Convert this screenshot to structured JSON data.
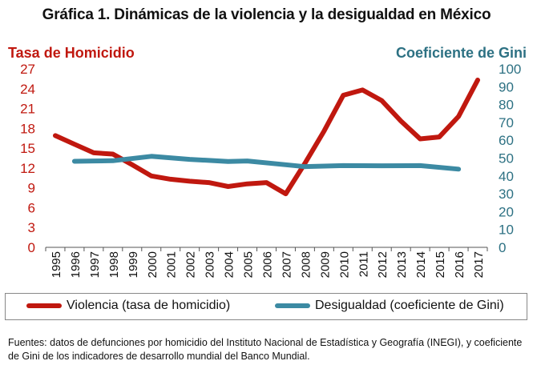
{
  "title": "Gráfica 1.  Dinámicas de la violencia y la desigualdad en México",
  "left_axis_title": "Tasa de Homicidio",
  "right_axis_title": "Coeficiente de Gini",
  "legend": {
    "violence": "Violencia (tasa de homicidio)",
    "inequality": "Desigualdad (coeficiente de Gini)"
  },
  "source": "Fuentes: datos de defunciones por homicidio del Instituto Nacional de Estadística y Geografía (INEGI), y coeficiente de Gini de los indicadores de desarrollo mundial del Banco Mundial.",
  "colors": {
    "violence": "#c0180f",
    "inequality": "#3c8aa3",
    "right_axis": "#2d7183"
  },
  "chart_data": {
    "type": "line",
    "title": "Gráfica 1.  Dinámicas de la violencia y la desigualdad en México",
    "xlabel": "",
    "ylabel": "Tasa de Homicidio",
    "y2label": "Coeficiente de Gini",
    "categories": [
      "1995",
      "1996",
      "1997",
      "1998",
      "1999",
      "2000",
      "2001",
      "2002",
      "2003",
      "2004",
      "2005",
      "2006",
      "2007",
      "2008",
      "2009",
      "2010",
      "2011",
      "2012",
      "2013",
      "2014",
      "2015",
      "2016",
      "2017"
    ],
    "ylim": [
      0,
      27
    ],
    "yticks": [
      0,
      3,
      6,
      9,
      12,
      15,
      18,
      21,
      24,
      27
    ],
    "y2lim": [
      0,
      100
    ],
    "y2ticks": [
      0,
      10,
      20,
      30,
      40,
      50,
      60,
      70,
      80,
      90,
      100
    ],
    "series": [
      {
        "name": "Violencia (tasa de homicidio)",
        "axis": "left",
        "values": [
          16.9,
          15.6,
          14.3,
          14.1,
          12.5,
          10.8,
          10.3,
          10.0,
          9.8,
          9.2,
          9.6,
          9.8,
          8.1,
          12.7,
          17.6,
          23.0,
          23.8,
          22.2,
          19.1,
          16.4,
          16.7,
          19.8,
          25.3
        ]
      },
      {
        "name": "Desigualdad (coeficiente de Gini)",
        "axis": "right",
        "values": [
          null,
          48.2,
          48.4,
          48.5,
          null,
          51.0,
          null,
          49.3,
          null,
          48.1,
          48.4,
          null,
          46.3,
          45.2,
          null,
          45.8,
          null,
          45.7,
          null,
          45.8,
          null,
          43.8,
          null
        ]
      }
    ]
  }
}
